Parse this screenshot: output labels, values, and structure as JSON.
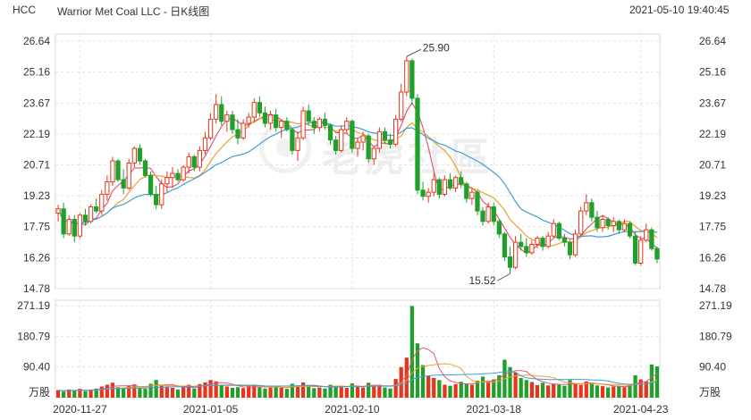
{
  "header": {
    "ticker": "HCC",
    "title": "Warrior Met Coal LLC - 日K线图",
    "timestamp": "2021-05-10 19:40:45"
  },
  "watermark": "老虎社區",
  "colors": {
    "up": "#e8341c",
    "down": "#1fa02a",
    "ma5": "#e05a7a",
    "ma10": "#f0a030",
    "ma20": "#3a9fd8",
    "grid": "#e3e3e3"
  },
  "chart_data": {
    "type": "candlestick",
    "price_axis": {
      "ticks": [
        "26.64",
        "25.16",
        "23.67",
        "22.19",
        "20.71",
        "19.23",
        "17.75",
        "16.26",
        "14.78"
      ],
      "min": 14.78,
      "max": 26.64
    },
    "volume_axis": {
      "ticks": [
        "271.19",
        "180.79",
        "90.40"
      ],
      "unit": "万股",
      "max": 271.19
    },
    "x_labels": [
      "2020-11-27",
      "2021-01-05",
      "2021-02-10",
      "2021-03-18",
      "2021-04-23"
    ],
    "annotations": {
      "high": "25.90",
      "low": "15.52"
    },
    "candles": [
      [
        18.4,
        18.8,
        18.0,
        18.6
      ],
      [
        18.6,
        18.9,
        17.2,
        17.4
      ],
      [
        17.4,
        18.3,
        17.3,
        18.1
      ],
      [
        18.1,
        18.3,
        17.0,
        17.3
      ],
      [
        17.3,
        18.4,
        17.2,
        18.3
      ],
      [
        18.3,
        18.6,
        17.8,
        18.0
      ],
      [
        18.0,
        18.8,
        17.9,
        18.7
      ],
      [
        18.7,
        19.1,
        18.4,
        18.5
      ],
      [
        18.5,
        19.5,
        18.3,
        19.3
      ],
      [
        19.3,
        20.2,
        19.0,
        19.9
      ],
      [
        19.9,
        21.1,
        19.7,
        20.9
      ],
      [
        20.9,
        21.0,
        19.9,
        20.0
      ],
      [
        20.0,
        20.5,
        19.3,
        19.6
      ],
      [
        19.6,
        21.0,
        19.5,
        20.8
      ],
      [
        20.8,
        21.6,
        20.6,
        21.5
      ],
      [
        21.5,
        21.7,
        20.7,
        20.9
      ],
      [
        20.9,
        21.0,
        20.1,
        20.2
      ],
      [
        20.2,
        20.4,
        19.2,
        19.3
      ],
      [
        19.3,
        19.7,
        18.6,
        18.8
      ],
      [
        18.8,
        20.0,
        18.6,
        19.8
      ],
      [
        19.8,
        20.4,
        19.4,
        20.1
      ],
      [
        20.1,
        20.6,
        19.6,
        20.3
      ],
      [
        20.3,
        20.5,
        19.9,
        20.0
      ],
      [
        20.0,
        20.7,
        19.9,
        20.6
      ],
      [
        20.6,
        21.3,
        20.3,
        21.1
      ],
      [
        21.1,
        21.2,
        20.4,
        20.6
      ],
      [
        20.6,
        21.6,
        20.4,
        21.4
      ],
      [
        21.4,
        22.3,
        21.2,
        22.0
      ],
      [
        22.0,
        23.2,
        21.9,
        22.9
      ],
      [
        22.9,
        24.1,
        22.7,
        23.6
      ],
      [
        23.6,
        24.0,
        22.6,
        22.8
      ],
      [
        22.8,
        23.3,
        22.3,
        23.1
      ],
      [
        23.1,
        23.3,
        22.2,
        22.4
      ],
      [
        22.4,
        22.9,
        21.7,
        22.0
      ],
      [
        22.0,
        22.9,
        21.9,
        22.7
      ],
      [
        22.7,
        23.2,
        22.5,
        23.0
      ],
      [
        23.0,
        23.9,
        22.8,
        23.7
      ],
      [
        23.7,
        24.0,
        23.0,
        23.2
      ],
      [
        23.2,
        23.5,
        22.5,
        22.7
      ],
      [
        22.7,
        23.3,
        22.4,
        23.1
      ],
      [
        23.1,
        23.4,
        22.3,
        22.5
      ],
      [
        22.5,
        22.9,
        22.0,
        22.8
      ],
      [
        22.8,
        23.0,
        22.3,
        22.4
      ],
      [
        22.4,
        22.5,
        21.2,
        21.4
      ],
      [
        21.4,
        22.3,
        20.9,
        22.0
      ],
      [
        22.0,
        23.5,
        21.9,
        23.3
      ],
      [
        23.3,
        23.6,
        22.6,
        22.8
      ],
      [
        22.8,
        23.0,
        22.2,
        22.5
      ],
      [
        22.5,
        23.0,
        22.3,
        22.9
      ],
      [
        22.9,
        23.2,
        22.4,
        22.6
      ],
      [
        22.6,
        22.7,
        21.7,
        21.9
      ],
      [
        21.9,
        22.1,
        21.2,
        21.4
      ],
      [
        21.4,
        22.6,
        21.3,
        22.4
      ],
      [
        22.4,
        23.0,
        22.2,
        22.8
      ],
      [
        22.8,
        22.9,
        21.3,
        21.5
      ],
      [
        21.5,
        22.0,
        21.1,
        21.8
      ],
      [
        21.8,
        22.3,
        21.4,
        22.1
      ],
      [
        22.1,
        22.2,
        20.8,
        21.0
      ],
      [
        21.0,
        21.6,
        20.7,
        21.5
      ],
      [
        21.5,
        22.5,
        21.3,
        22.3
      ],
      [
        22.3,
        22.5,
        21.7,
        21.9
      ],
      [
        21.9,
        22.2,
        21.5,
        21.7
      ],
      [
        21.7,
        23.1,
        21.6,
        22.9
      ],
      [
        22.9,
        24.6,
        22.8,
        24.2
      ],
      [
        24.2,
        25.9,
        24.0,
        25.7
      ],
      [
        25.7,
        25.8,
        23.6,
        23.9
      ],
      [
        23.9,
        24.1,
        19.3,
        19.5
      ],
      [
        19.5,
        19.9,
        19.0,
        19.2
      ],
      [
        19.2,
        19.6,
        18.9,
        19.4
      ],
      [
        19.4,
        20.3,
        19.2,
        20.0
      ],
      [
        20.0,
        20.1,
        19.1,
        19.3
      ],
      [
        19.3,
        20.2,
        19.2,
        20.0
      ],
      [
        20.0,
        20.3,
        19.5,
        19.6
      ],
      [
        19.6,
        20.2,
        19.4,
        20.1
      ],
      [
        20.1,
        20.4,
        19.6,
        19.8
      ],
      [
        19.8,
        19.9,
        18.9,
        19.1
      ],
      [
        19.1,
        19.6,
        18.8,
        19.4
      ],
      [
        19.4,
        19.5,
        18.3,
        18.5
      ],
      [
        18.5,
        18.7,
        17.8,
        18.0
      ],
      [
        18.0,
        18.9,
        17.9,
        18.7
      ],
      [
        18.7,
        18.9,
        17.8,
        18.0
      ],
      [
        18.0,
        18.1,
        17.2,
        17.4
      ],
      [
        17.4,
        17.5,
        16.1,
        16.3
      ],
      [
        16.3,
        16.8,
        15.5,
        15.8
      ],
      [
        15.8,
        17.3,
        15.7,
        17.0
      ],
      [
        17.0,
        17.4,
        16.6,
        16.8
      ],
      [
        16.8,
        17.2,
        16.3,
        16.5
      ],
      [
        16.5,
        17.1,
        16.4,
        16.9
      ],
      [
        16.9,
        17.3,
        16.7,
        17.2
      ],
      [
        17.2,
        17.3,
        16.6,
        16.8
      ],
      [
        16.8,
        17.5,
        16.7,
        17.3
      ],
      [
        17.3,
        18.1,
        17.2,
        17.9
      ],
      [
        17.9,
        18.0,
        17.1,
        17.2
      ],
      [
        17.2,
        17.4,
        16.8,
        17.0
      ],
      [
        17.0,
        17.1,
        16.2,
        16.4
      ],
      [
        16.4,
        17.6,
        16.3,
        17.4
      ],
      [
        17.4,
        18.7,
        17.3,
        18.5
      ],
      [
        18.5,
        19.3,
        18.3,
        18.9
      ],
      [
        18.9,
        19.1,
        18.0,
        18.2
      ],
      [
        18.2,
        18.5,
        17.5,
        17.7
      ],
      [
        17.7,
        18.3,
        17.5,
        18.1
      ],
      [
        18.1,
        18.2,
        17.6,
        17.8
      ],
      [
        17.8,
        18.2,
        17.5,
        18.0
      ],
      [
        18.0,
        18.1,
        17.4,
        17.6
      ],
      [
        17.6,
        18.1,
        17.5,
        17.9
      ],
      [
        17.9,
        18.0,
        17.2,
        17.3
      ],
      [
        17.3,
        17.5,
        15.9,
        16.0
      ],
      [
        16.0,
        17.3,
        15.9,
        17.1
      ],
      [
        17.1,
        17.9,
        17.0,
        17.6
      ],
      [
        17.6,
        17.7,
        16.6,
        16.7
      ],
      [
        16.7,
        16.8,
        16.0,
        16.2
      ]
    ],
    "volumes": [
      22,
      18,
      24,
      20,
      26,
      19,
      24,
      27,
      33,
      38,
      44,
      31,
      28,
      35,
      39,
      30,
      26,
      41,
      52,
      36,
      33,
      29,
      24,
      31,
      38,
      27,
      40,
      45,
      52,
      48,
      37,
      33,
      29,
      31,
      28,
      34,
      38,
      31,
      27,
      30,
      35,
      29,
      26,
      41,
      36,
      45,
      33,
      28,
      30,
      27,
      38,
      35,
      31,
      29,
      42,
      34,
      30,
      44,
      33,
      38,
      30,
      27,
      55,
      90,
      118,
      270,
      160,
      96,
      64,
      58,
      52,
      38,
      35,
      40,
      47,
      42,
      38,
      50,
      62,
      48,
      54,
      66,
      112,
      90,
      74,
      58,
      52,
      46,
      37,
      44,
      36,
      40,
      39,
      35,
      52,
      40,
      38,
      48,
      41,
      36,
      34,
      30,
      33,
      35,
      31,
      38,
      66,
      54,
      48,
      98,
      92
    ]
  }
}
